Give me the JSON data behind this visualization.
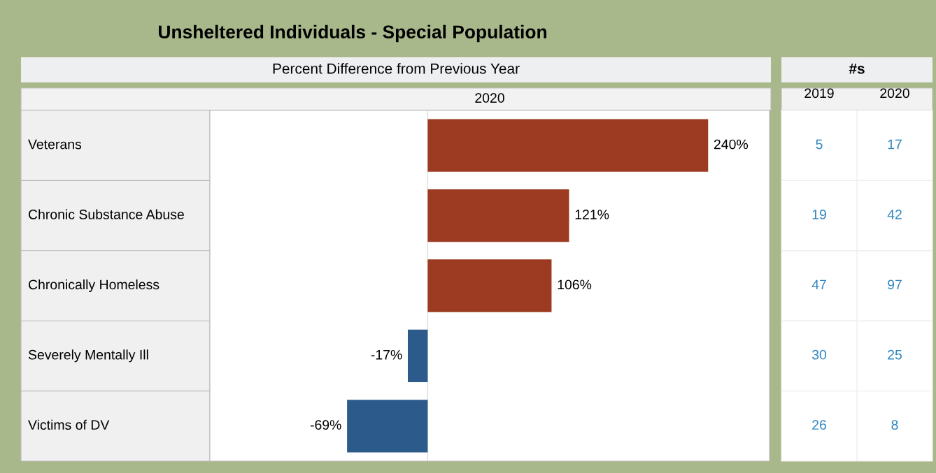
{
  "chart_data": [
    {
      "type": "bar",
      "orientation": "horizontal",
      "title": "Unsheltered Individuals - Special Population",
      "subtitle": "Percent Difference from Previous Year",
      "xlabel": "2020",
      "categories": [
        "Veterans",
        "Chronic Substance Abuse",
        "Chronically Homeless",
        "Severely Mentally Ill",
        "Victims of DV"
      ],
      "values": [
        240,
        121,
        106,
        -17,
        -69
      ],
      "colors": [
        "#9c3b22",
        "#9c3b22",
        "#9c3b22",
        "#2c5a8a",
        "#2c5a8a"
      ],
      "value_labels": [
        "240%",
        "121%",
        "106%",
        "-17%",
        "-69%"
      ]
    },
    {
      "type": "other",
      "title": "#s",
      "categories": [
        "2019",
        "2020"
      ],
      "annotations": [
        "5",
        "17",
        "19",
        "42",
        "47",
        "97",
        "30",
        "25",
        "26",
        "8"
      ]
    }
  ]
}
